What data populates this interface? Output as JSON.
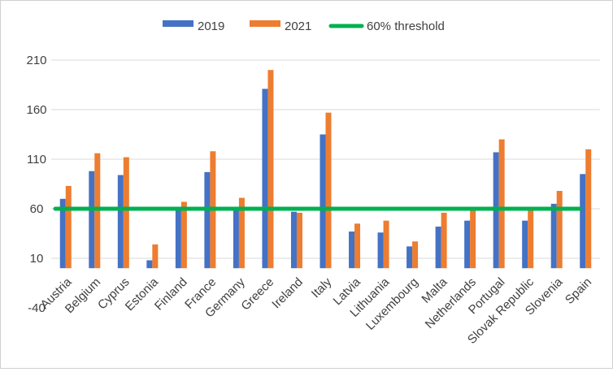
{
  "chart_data": {
    "type": "bar",
    "title": "",
    "xlabel": "",
    "ylabel": "",
    "ylim": [
      -40,
      210
    ],
    "yticks": [
      -40,
      10,
      60,
      110,
      160,
      210
    ],
    "grid": true,
    "legend_position": "top",
    "categories": [
      "Austria",
      "Belgium",
      "Cyprus",
      "Estonia",
      "Finland",
      "France",
      "Germany",
      "Greece",
      "Ireland",
      "Italy",
      "Latvia",
      "Lithuania",
      "Luxembourg",
      "Malta",
      "Netherlands",
      "Portugal",
      "Slovak Republic",
      "Slovenia",
      "Spain"
    ],
    "series": [
      {
        "name": "2019",
        "color": "#4472C4",
        "values": [
          70,
          98,
          94,
          8,
          59,
          97,
          59,
          181,
          57,
          135,
          37,
          36,
          22,
          42,
          48,
          117,
          48,
          65,
          95
        ]
      },
      {
        "name": "2021",
        "color": "#ED7D31",
        "values": [
          83,
          116,
          112,
          24,
          67,
          118,
          71,
          200,
          56,
          157,
          45,
          48,
          27,
          56,
          59,
          130,
          59,
          78,
          120
        ]
      }
    ],
    "threshold": {
      "name": "60% threshold",
      "value": 60,
      "color": "#00B050"
    }
  }
}
